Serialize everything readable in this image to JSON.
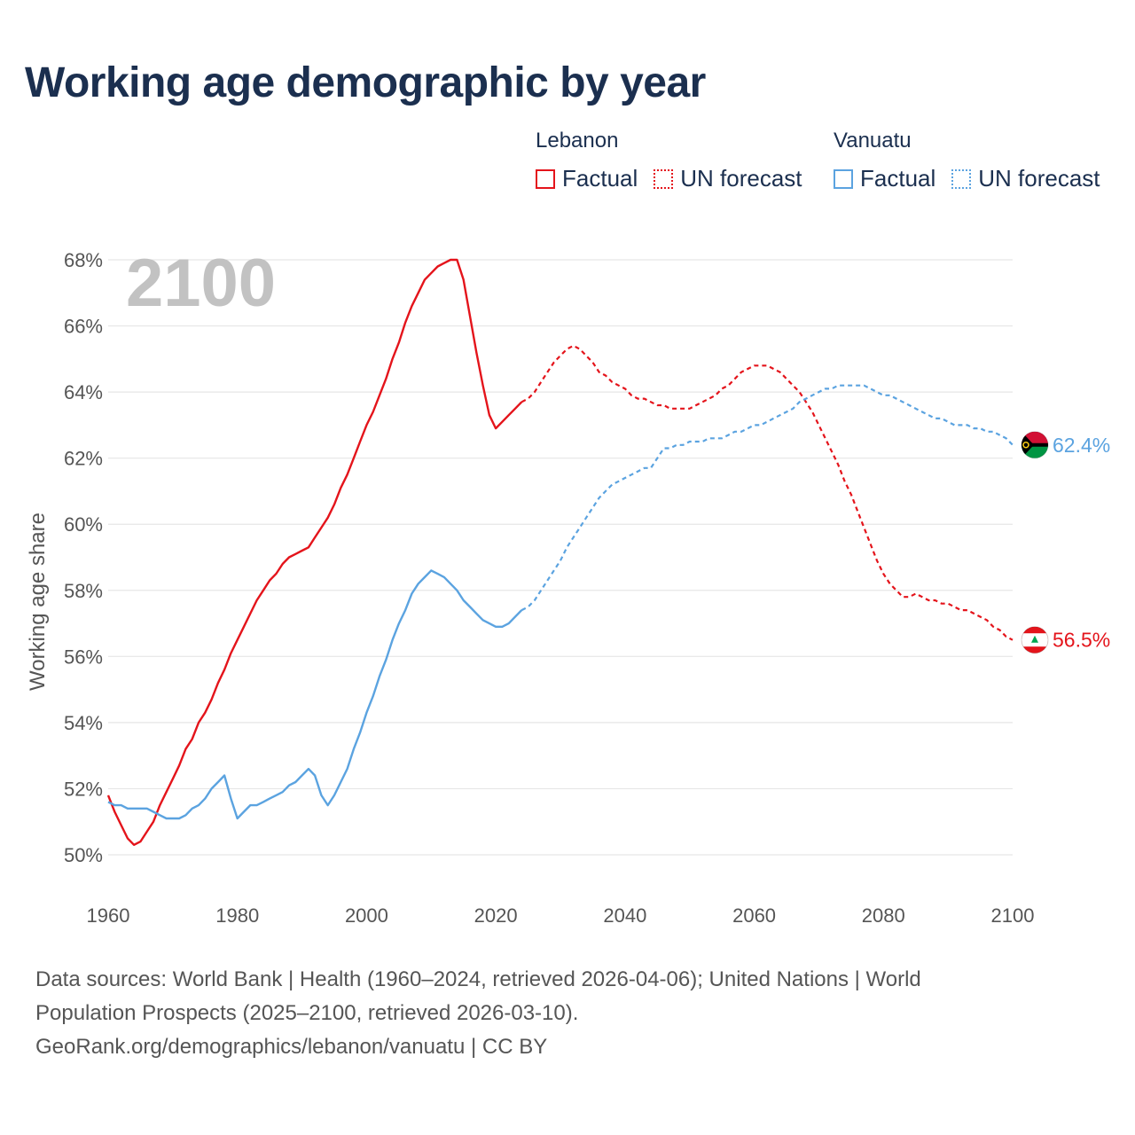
{
  "title": "Working age demographic by year",
  "legend": {
    "lebanon": {
      "country": "Lebanon",
      "factual": "Factual",
      "forecast": "UN forecast"
    },
    "vanuatu": {
      "country": "Vanuatu",
      "factual": "Factual",
      "forecast": "UN forecast"
    }
  },
  "footer": {
    "line1": "Data sources: World Bank | Health (1960–2024, retrieved 2026-04-06); United Nations | World",
    "line2": "Population Prospects (2025–2100, retrieved 2026-03-10).",
    "line3": "GeoRank.org/demographics/lebanon/vanuatu | CC BY"
  },
  "colors": {
    "lebanon": "#e4141b",
    "vanuatu": "#5ba3e0",
    "title": "#1b2f4f",
    "grid": "#e6e6e6",
    "tick": "#555555",
    "year": "#c2c2c2"
  },
  "chart_data": {
    "type": "line",
    "title": "Working age demographic by year",
    "xlabel": "",
    "ylabel": "Working age share",
    "xlim": [
      1960,
      2100
    ],
    "ylim": [
      50,
      68
    ],
    "x_ticks": [
      1960,
      1980,
      2000,
      2020,
      2040,
      2060,
      2080,
      2100
    ],
    "y_ticks": [
      50,
      52,
      54,
      56,
      58,
      60,
      62,
      64,
      66,
      68
    ],
    "y_tick_labels": [
      "50%",
      "52%",
      "54%",
      "56%",
      "58%",
      "60%",
      "62%",
      "64%",
      "66%",
      "68%"
    ],
    "x_tick_labels": [
      "1960",
      "1980",
      "2000",
      "2020",
      "2040",
      "2060",
      "2080",
      "2100"
    ],
    "year_label": "2100",
    "grid": true,
    "series": [
      {
        "name": "Lebanon",
        "color": "#e4141b",
        "end_label": "56.5%",
        "flag": "lebanon-flag-icon",
        "factual": [
          [
            1960,
            51.8
          ],
          [
            1961,
            51.3
          ],
          [
            1962,
            50.9
          ],
          [
            1963,
            50.5
          ],
          [
            1964,
            50.3
          ],
          [
            1965,
            50.4
          ],
          [
            1966,
            50.7
          ],
          [
            1967,
            51.0
          ],
          [
            1968,
            51.5
          ],
          [
            1969,
            51.9
          ],
          [
            1970,
            52.3
          ],
          [
            1971,
            52.7
          ],
          [
            1972,
            53.2
          ],
          [
            1973,
            53.5
          ],
          [
            1974,
            54.0
          ],
          [
            1975,
            54.3
          ],
          [
            1976,
            54.7
          ],
          [
            1977,
            55.2
          ],
          [
            1978,
            55.6
          ],
          [
            1979,
            56.1
          ],
          [
            1980,
            56.5
          ],
          [
            1981,
            56.9
          ],
          [
            1982,
            57.3
          ],
          [
            1983,
            57.7
          ],
          [
            1984,
            58.0
          ],
          [
            1985,
            58.3
          ],
          [
            1986,
            58.5
          ],
          [
            1987,
            58.8
          ],
          [
            1988,
            59.0
          ],
          [
            1989,
            59.1
          ],
          [
            1990,
            59.2
          ],
          [
            1991,
            59.3
          ],
          [
            1992,
            59.6
          ],
          [
            1993,
            59.9
          ],
          [
            1994,
            60.2
          ],
          [
            1995,
            60.6
          ],
          [
            1996,
            61.1
          ],
          [
            1997,
            61.5
          ],
          [
            1998,
            62.0
          ],
          [
            1999,
            62.5
          ],
          [
            2000,
            63.0
          ],
          [
            2001,
            63.4
          ],
          [
            2002,
            63.9
          ],
          [
            2003,
            64.4
          ],
          [
            2004,
            65.0
          ],
          [
            2005,
            65.5
          ],
          [
            2006,
            66.1
          ],
          [
            2007,
            66.6
          ],
          [
            2008,
            67.0
          ],
          [
            2009,
            67.4
          ],
          [
            2010,
            67.6
          ],
          [
            2011,
            67.8
          ],
          [
            2012,
            67.9
          ],
          [
            2013,
            68.0
          ],
          [
            2014,
            68.0
          ],
          [
            2015,
            67.4
          ],
          [
            2016,
            66.3
          ],
          [
            2017,
            65.2
          ],
          [
            2018,
            64.2
          ],
          [
            2019,
            63.3
          ],
          [
            2020,
            62.9
          ],
          [
            2021,
            63.1
          ],
          [
            2022,
            63.3
          ],
          [
            2023,
            63.5
          ],
          [
            2024,
            63.7
          ]
        ],
        "forecast": [
          [
            2024,
            63.7
          ],
          [
            2025,
            63.8
          ],
          [
            2026,
            64.0
          ],
          [
            2027,
            64.3
          ],
          [
            2028,
            64.6
          ],
          [
            2029,
            64.9
          ],
          [
            2030,
            65.1
          ],
          [
            2031,
            65.3
          ],
          [
            2032,
            65.4
          ],
          [
            2033,
            65.3
          ],
          [
            2034,
            65.1
          ],
          [
            2035,
            64.9
          ],
          [
            2036,
            64.6
          ],
          [
            2037,
            64.5
          ],
          [
            2038,
            64.3
          ],
          [
            2039,
            64.2
          ],
          [
            2040,
            64.1
          ],
          [
            2041,
            63.9
          ],
          [
            2042,
            63.8
          ],
          [
            2043,
            63.8
          ],
          [
            2044,
            63.7
          ],
          [
            2045,
            63.6
          ],
          [
            2046,
            63.6
          ],
          [
            2047,
            63.5
          ],
          [
            2048,
            63.5
          ],
          [
            2049,
            63.5
          ],
          [
            2050,
            63.5
          ],
          [
            2051,
            63.6
          ],
          [
            2052,
            63.7
          ],
          [
            2053,
            63.8
          ],
          [
            2054,
            63.9
          ],
          [
            2055,
            64.1
          ],
          [
            2056,
            64.2
          ],
          [
            2057,
            64.4
          ],
          [
            2058,
            64.6
          ],
          [
            2059,
            64.7
          ],
          [
            2060,
            64.8
          ],
          [
            2061,
            64.8
          ],
          [
            2062,
            64.8
          ],
          [
            2063,
            64.7
          ],
          [
            2064,
            64.6
          ],
          [
            2065,
            64.4
          ],
          [
            2066,
            64.2
          ],
          [
            2067,
            64.0
          ],
          [
            2068,
            63.7
          ],
          [
            2069,
            63.4
          ],
          [
            2070,
            63.0
          ],
          [
            2071,
            62.6
          ],
          [
            2072,
            62.2
          ],
          [
            2073,
            61.8
          ],
          [
            2074,
            61.3
          ],
          [
            2075,
            60.9
          ],
          [
            2076,
            60.4
          ],
          [
            2077,
            59.9
          ],
          [
            2078,
            59.4
          ],
          [
            2079,
            58.9
          ],
          [
            2080,
            58.5
          ],
          [
            2081,
            58.2
          ],
          [
            2082,
            58.0
          ],
          [
            2083,
            57.8
          ],
          [
            2084,
            57.8
          ],
          [
            2085,
            57.9
          ],
          [
            2086,
            57.8
          ],
          [
            2087,
            57.7
          ],
          [
            2088,
            57.7
          ],
          [
            2089,
            57.6
          ],
          [
            2090,
            57.6
          ],
          [
            2091,
            57.5
          ],
          [
            2092,
            57.4
          ],
          [
            2093,
            57.4
          ],
          [
            2094,
            57.3
          ],
          [
            2095,
            57.2
          ],
          [
            2096,
            57.1
          ],
          [
            2097,
            56.9
          ],
          [
            2098,
            56.8
          ],
          [
            2099,
            56.6
          ],
          [
            2100,
            56.5
          ]
        ]
      },
      {
        "name": "Vanuatu",
        "color": "#5ba3e0",
        "end_label": "62.4%",
        "flag": "vanuatu-flag-icon",
        "factual": [
          [
            1960,
            51.6
          ],
          [
            1961,
            51.5
          ],
          [
            1962,
            51.5
          ],
          [
            1963,
            51.4
          ],
          [
            1964,
            51.4
          ],
          [
            1965,
            51.4
          ],
          [
            1966,
            51.4
          ],
          [
            1967,
            51.3
          ],
          [
            1968,
            51.2
          ],
          [
            1969,
            51.1
          ],
          [
            1970,
            51.1
          ],
          [
            1971,
            51.1
          ],
          [
            1972,
            51.2
          ],
          [
            1973,
            51.4
          ],
          [
            1974,
            51.5
          ],
          [
            1975,
            51.7
          ],
          [
            1976,
            52.0
          ],
          [
            1977,
            52.2
          ],
          [
            1978,
            52.4
          ],
          [
            1979,
            51.7
          ],
          [
            1980,
            51.1
          ],
          [
            1981,
            51.3
          ],
          [
            1982,
            51.5
          ],
          [
            1983,
            51.5
          ],
          [
            1984,
            51.6
          ],
          [
            1985,
            51.7
          ],
          [
            1986,
            51.8
          ],
          [
            1987,
            51.9
          ],
          [
            1988,
            52.1
          ],
          [
            1989,
            52.2
          ],
          [
            1990,
            52.4
          ],
          [
            1991,
            52.6
          ],
          [
            1992,
            52.4
          ],
          [
            1993,
            51.8
          ],
          [
            1994,
            51.5
          ],
          [
            1995,
            51.8
          ],
          [
            1996,
            52.2
          ],
          [
            1997,
            52.6
          ],
          [
            1998,
            53.2
          ],
          [
            1999,
            53.7
          ],
          [
            2000,
            54.3
          ],
          [
            2001,
            54.8
          ],
          [
            2002,
            55.4
          ],
          [
            2003,
            55.9
          ],
          [
            2004,
            56.5
          ],
          [
            2005,
            57.0
          ],
          [
            2006,
            57.4
          ],
          [
            2007,
            57.9
          ],
          [
            2008,
            58.2
          ],
          [
            2009,
            58.4
          ],
          [
            2010,
            58.6
          ],
          [
            2011,
            58.5
          ],
          [
            2012,
            58.4
          ],
          [
            2013,
            58.2
          ],
          [
            2014,
            58.0
          ],
          [
            2015,
            57.7
          ],
          [
            2016,
            57.5
          ],
          [
            2017,
            57.3
          ],
          [
            2018,
            57.1
          ],
          [
            2019,
            57.0
          ],
          [
            2020,
            56.9
          ],
          [
            2021,
            56.9
          ],
          [
            2022,
            57.0
          ],
          [
            2023,
            57.2
          ],
          [
            2024,
            57.4
          ]
        ],
        "forecast": [
          [
            2024,
            57.4
          ],
          [
            2025,
            57.5
          ],
          [
            2026,
            57.7
          ],
          [
            2027,
            58.0
          ],
          [
            2028,
            58.3
          ],
          [
            2029,
            58.6
          ],
          [
            2030,
            58.9
          ],
          [
            2031,
            59.3
          ],
          [
            2032,
            59.6
          ],
          [
            2033,
            59.9
          ],
          [
            2034,
            60.2
          ],
          [
            2035,
            60.5
          ],
          [
            2036,
            60.8
          ],
          [
            2037,
            61.0
          ],
          [
            2038,
            61.2
          ],
          [
            2039,
            61.3
          ],
          [
            2040,
            61.4
          ],
          [
            2041,
            61.5
          ],
          [
            2042,
            61.6
          ],
          [
            2043,
            61.7
          ],
          [
            2044,
            61.7
          ],
          [
            2045,
            62.0
          ],
          [
            2046,
            62.3
          ],
          [
            2047,
            62.3
          ],
          [
            2048,
            62.4
          ],
          [
            2049,
            62.4
          ],
          [
            2050,
            62.5
          ],
          [
            2051,
            62.5
          ],
          [
            2052,
            62.5
          ],
          [
            2053,
            62.6
          ],
          [
            2054,
            62.6
          ],
          [
            2055,
            62.6
          ],
          [
            2056,
            62.7
          ],
          [
            2057,
            62.8
          ],
          [
            2058,
            62.8
          ],
          [
            2059,
            62.9
          ],
          [
            2060,
            63.0
          ],
          [
            2061,
            63.0
          ],
          [
            2062,
            63.1
          ],
          [
            2063,
            63.2
          ],
          [
            2064,
            63.3
          ],
          [
            2065,
            63.4
          ],
          [
            2066,
            63.5
          ],
          [
            2067,
            63.7
          ],
          [
            2068,
            63.8
          ],
          [
            2069,
            63.9
          ],
          [
            2070,
            64.0
          ],
          [
            2071,
            64.1
          ],
          [
            2072,
            64.1
          ],
          [
            2073,
            64.2
          ],
          [
            2074,
            64.2
          ],
          [
            2075,
            64.2
          ],
          [
            2076,
            64.2
          ],
          [
            2077,
            64.2
          ],
          [
            2078,
            64.1
          ],
          [
            2079,
            64.0
          ],
          [
            2080,
            63.9
          ],
          [
            2081,
            63.9
          ],
          [
            2082,
            63.8
          ],
          [
            2083,
            63.7
          ],
          [
            2084,
            63.6
          ],
          [
            2085,
            63.5
          ],
          [
            2086,
            63.4
          ],
          [
            2087,
            63.3
          ],
          [
            2088,
            63.2
          ],
          [
            2089,
            63.2
          ],
          [
            2090,
            63.1
          ],
          [
            2091,
            63.0
          ],
          [
            2092,
            63.0
          ],
          [
            2093,
            63.0
          ],
          [
            2094,
            62.9
          ],
          [
            2095,
            62.9
          ],
          [
            2096,
            62.8
          ],
          [
            2097,
            62.8
          ],
          [
            2098,
            62.7
          ],
          [
            2099,
            62.6
          ],
          [
            2100,
            62.4
          ]
        ]
      }
    ]
  }
}
